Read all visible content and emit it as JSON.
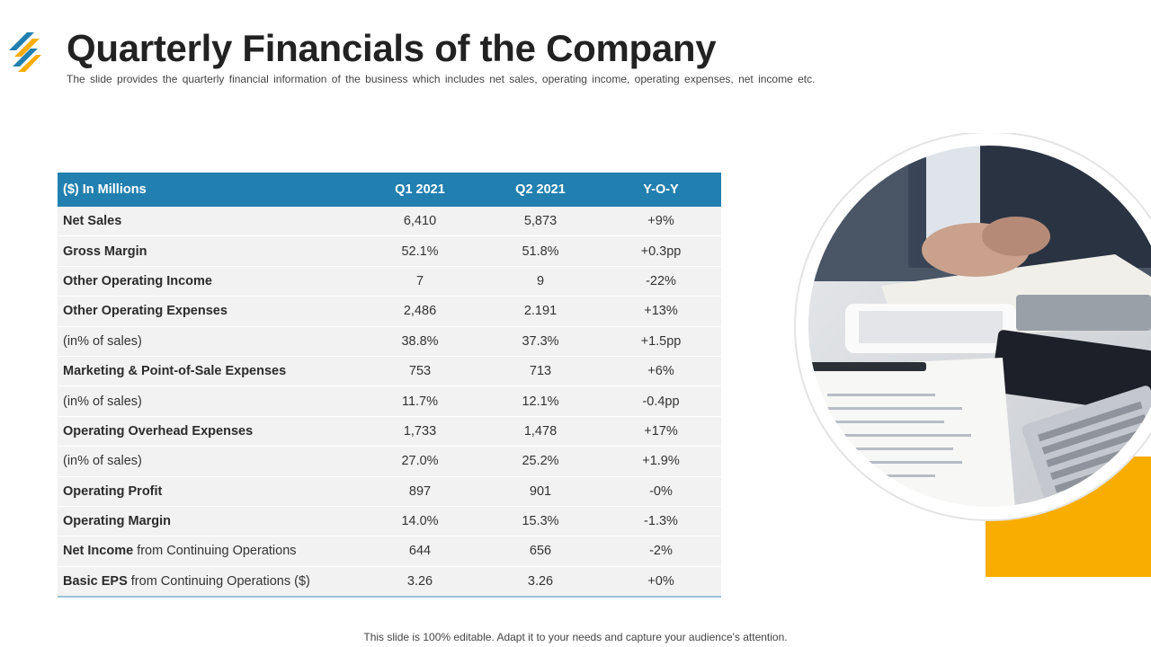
{
  "header": {
    "title": "Quarterly Financials of the Company",
    "subtitle": "The slide provides the quarterly financial information of the business which includes net sales, operating income, operating expenses, net income etc."
  },
  "table": {
    "columns": [
      "($) In Millions",
      "Q1 2021",
      "Q2 2021",
      "Y-O-Y"
    ],
    "rows": [
      {
        "label_bold": "Net Sales",
        "label_rest": "",
        "q1": "6,410",
        "q2": "5,873",
        "yoy": "+9%"
      },
      {
        "label_bold": "Gross Margin",
        "label_rest": "",
        "q1": "52.1%",
        "q2": "51.8%",
        "yoy": "+0.3pp"
      },
      {
        "label_bold": "Other Operating Income",
        "label_rest": "",
        "q1": "7",
        "q2": "9",
        "yoy": "-22%"
      },
      {
        "label_bold": "Other Operating Expenses",
        "label_rest": "",
        "q1": "2,486",
        "q2": "2.191",
        "yoy": "+13%"
      },
      {
        "label_bold": "",
        "label_rest": "(in% of sales)",
        "q1": "38.8%",
        "q2": "37.3%",
        "yoy": "+1.5pp"
      },
      {
        "label_bold": "Marketing & Point-of-Sale Expenses",
        "label_rest": "",
        "q1": "753",
        "q2": "713",
        "yoy": "+6%"
      },
      {
        "label_bold": "",
        "label_rest": "(in% of sales)",
        "q1": "11.7%",
        "q2": "12.1%",
        "yoy": "-0.4pp"
      },
      {
        "label_bold": "Operating Overhead Expenses",
        "label_rest": "",
        "q1": "1,733",
        "q2": "1,478",
        "yoy": "+17%"
      },
      {
        "label_bold": "",
        "label_rest": "(in% of sales)",
        "q1": "27.0%",
        "q2": "25.2%",
        "yoy": "+1.9%"
      },
      {
        "label_bold": "Operating Profit",
        "label_rest": "",
        "q1": "897",
        "q2": "901",
        "yoy": "-0%"
      },
      {
        "label_bold": "Operating Margin",
        "label_rest": "",
        "q1": "14.0%",
        "q2": "15.3%",
        "yoy": "-1.3%"
      },
      {
        "label_bold": "Net Income",
        "label_rest": " from Continuing Operations",
        "q1": "644",
        "q2": "656",
        "yoy": "-2%"
      },
      {
        "label_bold": "Basic EPS",
        "label_rest": " from Continuing Operations ($)",
        "q1": "3.26",
        "q2": "3.26",
        "yoy": "+0%"
      }
    ]
  },
  "footer": {
    "text": "This slide is 100% editable. Adapt it to your needs and capture your audience's attention."
  },
  "colors": {
    "table_header": "#2280b0",
    "row_background": "#f2f2f2",
    "accent_yellow": "#f9ad00",
    "logo_blue": "#2280b0",
    "logo_yellow": "#f9ad00"
  },
  "icons": {
    "logo": "slash-stripes-logo",
    "photo": "office-desk-photo"
  }
}
